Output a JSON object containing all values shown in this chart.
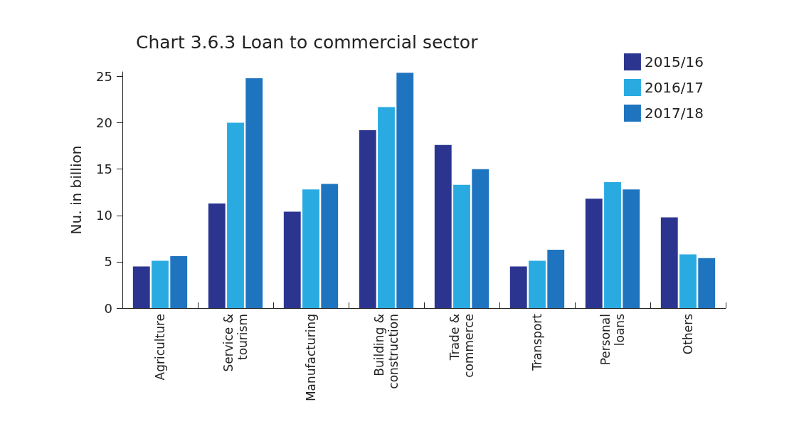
{
  "chart_data": {
    "type": "bar",
    "title": "Chart 3.6.3 Loan to commercial sector",
    "ylabel": "Nu. in billion",
    "categories": [
      "Agriculture",
      "Service &\ntourism",
      "Manufacturing",
      "Building &\nconstruction",
      "Trade &\ncommerce",
      "Transport",
      "Personal\nloans",
      "Others"
    ],
    "series": [
      {
        "name": "2015/16",
        "color": "#2b3590",
        "values": [
          4.5,
          11.3,
          10.4,
          19.2,
          17.6,
          4.5,
          11.8,
          9.8
        ]
      },
      {
        "name": "2016/17",
        "color": "#29abe2",
        "values": [
          5.1,
          20.0,
          12.8,
          21.7,
          13.3,
          5.1,
          13.6,
          5.8
        ]
      },
      {
        "name": "2017/18",
        "color": "#1f74bf",
        "values": [
          5.6,
          24.8,
          13.4,
          25.4,
          15.0,
          6.3,
          12.8,
          5.4
        ]
      }
    ],
    "ylim": [
      0,
      25.5
    ],
    "yticks": [
      0,
      5,
      10,
      15,
      20,
      25
    ],
    "grid": false,
    "legend": "top right"
  }
}
